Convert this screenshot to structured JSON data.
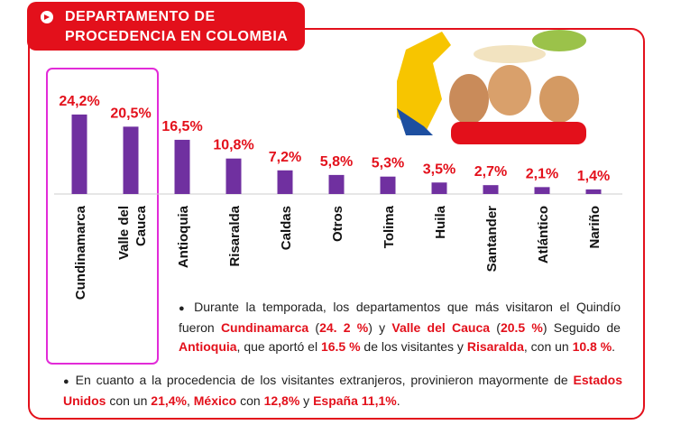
{
  "chart_data": {
    "type": "bar",
    "title": [
      "DEPARTAMENTO DE",
      "PROCEDENCIA EN COLOMBIA"
    ],
    "categories": [
      "Cundinamarca",
      "Valle del Cauca",
      "Antioquia",
      "Risaralda",
      "Caldas",
      "Otros",
      "Tolima",
      "Huila",
      "Santander",
      "Atlántico",
      "Nariño"
    ],
    "values": [
      24.2,
      20.5,
      16.5,
      10.8,
      7.2,
      5.8,
      5.3,
      3.5,
      2.7,
      2.1,
      1.4
    ],
    "value_labels": [
      "24,2%",
      "20,5%",
      "16,5%",
      "10,8%",
      "7,2%",
      "5,8%",
      "5,3%",
      "3,5%",
      "2,7%",
      "2,1%",
      "1,4%"
    ],
    "color": "#7030a0",
    "label_color": "#e3101b"
  },
  "notes": [
    [
      "Durante la temporada, los departamentos que más visitaron el Quindío fueron ",
      "Cundinamarca",
      " (",
      "24. 2 %",
      ") y ",
      "Valle del Cauca",
      " (",
      "20.5 %",
      ") Seguido de ",
      "Antioquia",
      ", que aportó el ",
      "16.5 %",
      " de los visitantes y ",
      "Risaralda",
      ", con un ",
      "10.8 %",
      "."
    ],
    [
      "En cuanto a la procedencia de los visitantes extranjeros, provinieron mayormente de ",
      "Estados Unidos",
      " con un ",
      "21,4%",
      ", ",
      "México",
      " con ",
      "12,8%",
      " y  ",
      "España 11,1%",
      "."
    ]
  ]
}
